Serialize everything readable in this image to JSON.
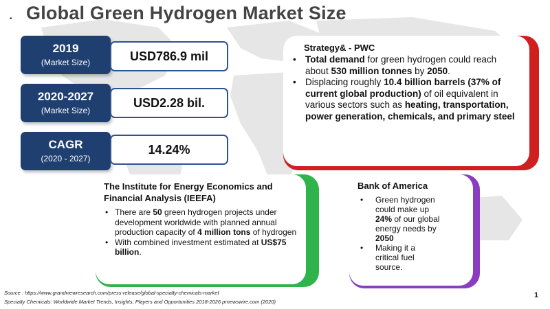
{
  "title": "Global Green Hydrogen Market Size",
  "stats": [
    {
      "label": "2019",
      "sublabel": "(Market Size)",
      "value": "USD786.9 mil"
    },
    {
      "label": "2020-2027",
      "sublabel": "(Market Size)",
      "value": "USD2.28 bil."
    },
    {
      "label": "CAGR",
      "sublabel": "(2020 - 2027)",
      "value": "14.24%"
    }
  ],
  "pwc": {
    "title": "Strategy& - PWC",
    "bullet1": {
      "lead": "Total demand",
      "t1": " for green hydrogen could reach about ",
      "b1": "530 million tonnes",
      "t2": " by ",
      "b2": "2050",
      "t3": "."
    },
    "bullet2": {
      "t1": "Displacing roughly ",
      "b1": "10.4 billion barrels (37% of current global production)",
      "t2": " of oil equivalent in various sectors such as ",
      "b2": "heating, transportation, power generation, chemicals, and primary steel"
    }
  },
  "ieefa": {
    "title": "The Institute for Energy Economics and Financial Analysis (IEEFA)",
    "bullet1": {
      "t1": "There are ",
      "b1": "50",
      "t2": " green hydrogen projects under development worldwide with planned annual production capacity of ",
      "b2": "4 million tons",
      "t3": " of hydrogen"
    },
    "bullet2": {
      "t1": "With combined investment estimated at ",
      "b1": "US$75 billion",
      "t2": "."
    }
  },
  "boa": {
    "title": "Bank of America",
    "bullet1": {
      "t1": "Green hydrogen could make up ",
      "b1": "24%",
      "t2": " of our global energy needs by ",
      "b2": "2050"
    },
    "bullet2": {
      "t1": "Making it a critical fuel source."
    }
  },
  "sources": [
    "Source : https://www.grandviewresearch.com/press-release/global-specialty-chemicals-market",
    "Specialty Chemicals: Worldwide Market Trends, Insights, Players and Opportunities 2018-2026 prnewswire.com (2020)"
  ],
  "page_number": "1",
  "colors": {
    "navy": "#1f3f71",
    "red": "#d01f1f",
    "green": "#2fb34a",
    "purple": "#8a3dbf"
  }
}
